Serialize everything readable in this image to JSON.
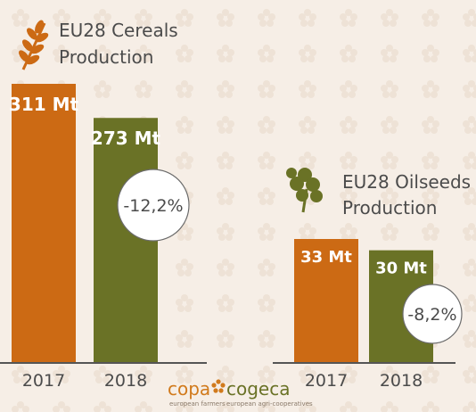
{
  "colors": {
    "bar_2017": "#cc6a14",
    "bar_2018": "#6a7226",
    "background": "#f6eee6",
    "axis": "#555555",
    "copa": "#d17a1c",
    "cogeca": "#6a7226"
  },
  "chart_data": [
    {
      "type": "bar",
      "title": "EU28 Cereals\nProduction",
      "icon": "wheat-icon",
      "categories": [
        "2017",
        "2018"
      ],
      "values": [
        311,
        273
      ],
      "unit": "Mt",
      "value_labels": [
        "311 Mt",
        "273 Mt"
      ],
      "change_label": "-12,2%",
      "ylim": [
        0,
        311
      ]
    },
    {
      "type": "bar",
      "title": "EU28 Oilseeds\nProduction",
      "icon": "clover-leaf-icon",
      "categories": [
        "2017",
        "2018"
      ],
      "values": [
        33,
        30
      ],
      "unit": "Mt",
      "value_labels": [
        "33 Mt",
        "30 Mt"
      ],
      "change_label": "-8,2%",
      "ylim": [
        0,
        33
      ]
    }
  ],
  "logo": {
    "copa": "copa",
    "cogeca": "cogeca",
    "copa_tagline": "european farmers",
    "cogeca_tagline": "european agri-cooperatives"
  }
}
